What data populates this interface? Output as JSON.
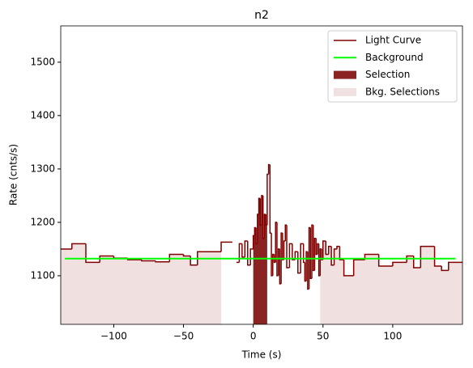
{
  "chart_data": {
    "type": "step",
    "title": "n2",
    "x_label": "Time (s)",
    "y_label": "Rate (cnts/s)",
    "xlim": [
      -138,
      150
    ],
    "ylim": [
      1009,
      1568
    ],
    "xticks": [
      {
        "value": -100,
        "label": "−100"
      },
      {
        "value": -50,
        "label": "−50"
      },
      0,
      50,
      100
    ],
    "yticks": [
      1100,
      1200,
      1300,
      1400,
      1500
    ],
    "legend": "upper right",
    "series": [
      {
        "name": "Light Curve",
        "color": "#800000",
        "x": [
          -138,
          -130,
          -120,
          -110,
          -100,
          -90,
          -80,
          -70,
          -60,
          -50,
          -45,
          -40,
          -23,
          -15,
          -12,
          -10,
          -8,
          -6,
          -4,
          -2,
          0,
          1,
          2,
          3,
          4,
          5,
          6,
          7,
          8,
          9,
          10,
          11,
          12,
          13,
          14,
          15,
          16,
          17,
          18,
          19,
          20,
          21,
          22,
          23,
          24,
          26,
          28,
          30,
          32,
          34,
          36,
          37,
          38,
          39,
          40,
          41,
          42,
          43,
          44,
          45,
          46,
          47,
          48,
          49,
          50,
          52,
          54,
          56,
          58,
          60,
          62,
          65,
          72,
          80,
          90,
          100,
          110,
          115,
          120,
          130,
          135,
          140
        ],
        "values": [
          1150,
          1160,
          1125,
          1137,
          1133,
          1130,
          1128,
          1126,
          1140,
          1137,
          1120,
          1145,
          1163,
          null,
          1125,
          1160,
          1135,
          1165,
          1120,
          1150,
          1175,
          1190,
          1160,
          1215,
          1245,
          1195,
          1250,
          1170,
          1215,
          1195,
          1290,
          1308,
          1180,
          1100,
          1140,
          1125,
          1200,
          1100,
          1150,
          1085,
          1180,
          1130,
          1165,
          1195,
          1115,
          1160,
          1130,
          1145,
          1105,
          1160,
          1125,
          1090,
          1145,
          1075,
          1190,
          1095,
          1195,
          1110,
          1170,
          1140,
          1160,
          1100,
          1150,
          1130,
          1165,
          1140,
          1155,
          1120,
          1150,
          1155,
          1130,
          1100,
          1130,
          1140,
          1118,
          1125,
          1137,
          1115,
          1155,
          1118,
          1110,
          1125
        ]
      },
      {
        "name": "Background",
        "color": "#00ff00",
        "x": [
          -135,
          145
        ],
        "values": [
          1132,
          1132
        ]
      }
    ],
    "selection": {
      "name": "Selection",
      "color": "#8b2323",
      "range": [
        0,
        10
      ]
    },
    "bkg_selections": {
      "name": "Bkg. Selections",
      "color": "#f0e0e0",
      "ranges": [
        [
          -138,
          -23
        ],
        [
          48,
          150
        ]
      ]
    }
  }
}
